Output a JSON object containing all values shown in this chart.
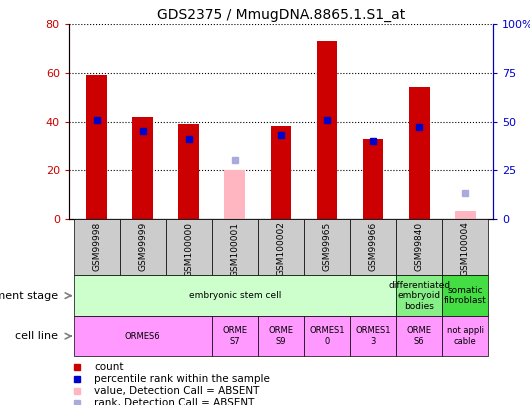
{
  "title": "GDS2375 / MmugDNA.8865.1.S1_at",
  "samples": [
    "GSM99998",
    "GSM99999",
    "GSM100000",
    "GSM100001",
    "GSM100002",
    "GSM99965",
    "GSM99966",
    "GSM99840",
    "GSM100004"
  ],
  "count_values": [
    59,
    42,
    39,
    null,
    38,
    73,
    33,
    54,
    null
  ],
  "count_absent": [
    null,
    null,
    null,
    20,
    null,
    null,
    null,
    null,
    3
  ],
  "rank_values": [
    51,
    45,
    41,
    null,
    43,
    51,
    40,
    47,
    null
  ],
  "rank_absent": [
    null,
    null,
    null,
    30,
    null,
    null,
    null,
    null,
    13
  ],
  "ylim_left": [
    0,
    80
  ],
  "ylim_right": [
    0,
    100
  ],
  "yticks_left": [
    0,
    20,
    40,
    60,
    80
  ],
  "yticks_right": [
    0,
    25,
    50,
    75,
    100
  ],
  "ytick_labels_right": [
    "0",
    "25",
    "50",
    "75",
    "100%"
  ],
  "color_count": "#CC0000",
  "color_count_absent": "#FFB6C1",
  "color_rank": "#0000CC",
  "color_rank_absent": "#AAAADD",
  "bar_width": 0.45,
  "bg_color": "#FFFFFF",
  "dev_groups": [
    {
      "label": "embryonic stem cell",
      "start": 0,
      "end": 7,
      "color": "#CCFFCC"
    },
    {
      "label": "differentiated\nembryoid\nbodies",
      "start": 7,
      "end": 8,
      "color": "#88EE88"
    },
    {
      "label": "somatic\nfibroblast",
      "start": 8,
      "end": 9,
      "color": "#44DD44"
    }
  ],
  "cell_groups": [
    {
      "label": "ORMES6",
      "start": 0,
      "end": 3,
      "color": "#FF99FF"
    },
    {
      "label": "ORME\nS7",
      "start": 3,
      "end": 4,
      "color": "#FF99FF"
    },
    {
      "label": "ORME\nS9",
      "start": 4,
      "end": 5,
      "color": "#FF99FF"
    },
    {
      "label": "ORMES1\n0",
      "start": 5,
      "end": 6,
      "color": "#FF99FF"
    },
    {
      "label": "ORMES1\n3",
      "start": 6,
      "end": 7,
      "color": "#FF99FF"
    },
    {
      "label": "ORME\nS6",
      "start": 7,
      "end": 8,
      "color": "#FF99FF"
    },
    {
      "label": "not appli\ncable",
      "start": 8,
      "end": 9,
      "color": "#FF99FF"
    }
  ],
  "legend_items": [
    {
      "label": "count",
      "color": "#CC0000"
    },
    {
      "label": "percentile rank within the sample",
      "color": "#0000CC"
    },
    {
      "label": "value, Detection Call = ABSENT",
      "color": "#FFB6C1"
    },
    {
      "label": "rank, Detection Call = ABSENT",
      "color": "#AAAADD"
    }
  ]
}
